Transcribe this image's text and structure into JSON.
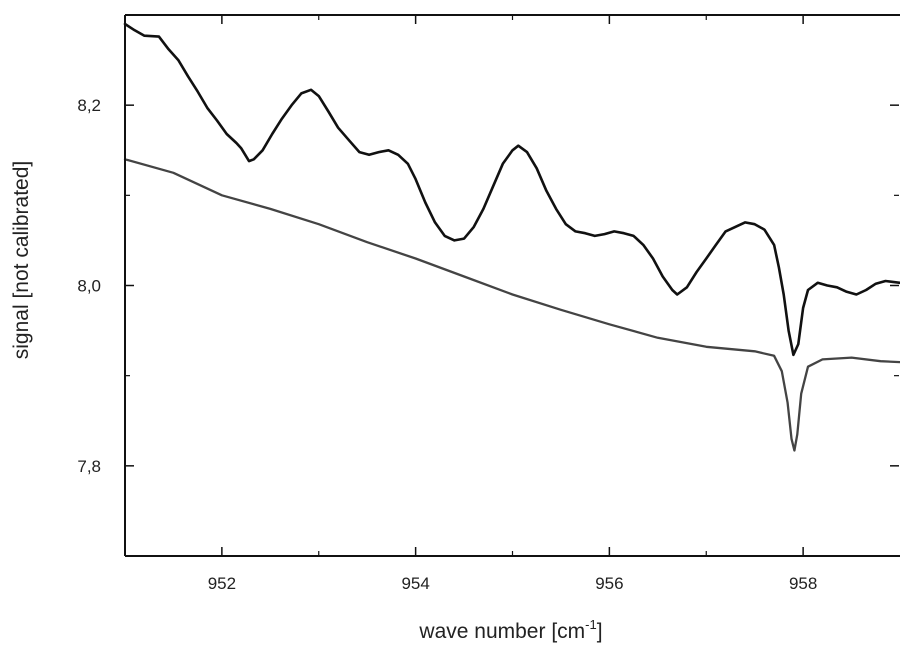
{
  "chart_data": {
    "type": "line",
    "title": "",
    "xlabel": {
      "prefix": "wave number [cm",
      "superscript": "-1",
      "suffix": "]"
    },
    "ylabel": "signal [not calibrated]",
    "xlim": [
      951.0,
      959.0
    ],
    "ylim": [
      7.7,
      8.3
    ],
    "xticks": [
      {
        "value": 952,
        "label": "952"
      },
      {
        "value": 954,
        "label": "954"
      },
      {
        "value": 956,
        "label": "956"
      },
      {
        "value": 958,
        "label": "958"
      }
    ],
    "yticks": [
      {
        "value": 7.8,
        "label": "7,8"
      },
      {
        "value": 8.0,
        "label": "8,0"
      },
      {
        "value": 8.2,
        "label": "8,2"
      }
    ],
    "x_minor_ticks": [
      951,
      953,
      955,
      957,
      959
    ],
    "y_minor_ticks": [
      7.7,
      7.9,
      8.1,
      8.3
    ],
    "grid": false,
    "legend": "none",
    "series": [
      {
        "color": "#111111",
        "points": [
          [
            951.0,
            8.29
          ],
          [
            951.1,
            8.283
          ],
          [
            951.2,
            8.277
          ],
          [
            951.35,
            8.276
          ],
          [
            951.45,
            8.262
          ],
          [
            951.55,
            8.25
          ],
          [
            951.65,
            8.232
          ],
          [
            951.75,
            8.215
          ],
          [
            951.85,
            8.197
          ],
          [
            951.95,
            8.183
          ],
          [
            952.05,
            8.168
          ],
          [
            952.15,
            8.158
          ],
          [
            952.2,
            8.152
          ],
          [
            952.28,
            8.138
          ],
          [
            952.33,
            8.14
          ],
          [
            952.42,
            8.15
          ],
          [
            952.52,
            8.168
          ],
          [
            952.62,
            8.185
          ],
          [
            952.72,
            8.2
          ],
          [
            952.82,
            8.213
          ],
          [
            952.92,
            8.217
          ],
          [
            953.0,
            8.21
          ],
          [
            953.1,
            8.193
          ],
          [
            953.2,
            8.175
          ],
          [
            953.32,
            8.16
          ],
          [
            953.42,
            8.148
          ],
          [
            953.52,
            8.145
          ],
          [
            953.62,
            8.148
          ],
          [
            953.72,
            8.15
          ],
          [
            953.82,
            8.145
          ],
          [
            953.92,
            8.135
          ],
          [
            954.0,
            8.118
          ],
          [
            954.1,
            8.092
          ],
          [
            954.2,
            8.07
          ],
          [
            954.3,
            8.055
          ],
          [
            954.4,
            8.05
          ],
          [
            954.5,
            8.052
          ],
          [
            954.6,
            8.065
          ],
          [
            954.7,
            8.085
          ],
          [
            954.8,
            8.11
          ],
          [
            954.9,
            8.135
          ],
          [
            955.0,
            8.15
          ],
          [
            955.06,
            8.155
          ],
          [
            955.15,
            8.148
          ],
          [
            955.25,
            8.13
          ],
          [
            955.35,
            8.105
          ],
          [
            955.45,
            8.085
          ],
          [
            955.55,
            8.068
          ],
          [
            955.65,
            8.06
          ],
          [
            955.75,
            8.058
          ],
          [
            955.85,
            8.055
          ],
          [
            955.95,
            8.057
          ],
          [
            956.05,
            8.06
          ],
          [
            956.15,
            8.058
          ],
          [
            956.25,
            8.055
          ],
          [
            956.35,
            8.045
          ],
          [
            956.45,
            8.03
          ],
          [
            956.55,
            8.01
          ],
          [
            956.65,
            7.995
          ],
          [
            956.7,
            7.99
          ],
          [
            956.8,
            7.998
          ],
          [
            956.9,
            8.015
          ],
          [
            957.0,
            8.03
          ],
          [
            957.1,
            8.045
          ],
          [
            957.2,
            8.06
          ],
          [
            957.3,
            8.065
          ],
          [
            957.4,
            8.07
          ],
          [
            957.5,
            8.068
          ],
          [
            957.6,
            8.062
          ],
          [
            957.7,
            8.045
          ],
          [
            957.75,
            8.02
          ],
          [
            957.8,
            7.99
          ],
          [
            957.85,
            7.95
          ],
          [
            957.9,
            7.923
          ],
          [
            957.95,
            7.935
          ],
          [
            958.0,
            7.975
          ],
          [
            958.05,
            7.995
          ],
          [
            958.15,
            8.003
          ],
          [
            958.25,
            8.0
          ],
          [
            958.35,
            7.998
          ],
          [
            958.45,
            7.993
          ],
          [
            958.55,
            7.99
          ],
          [
            958.65,
            7.995
          ],
          [
            958.75,
            8.002
          ],
          [
            958.85,
            8.005
          ],
          [
            959.0,
            8.003
          ]
        ]
      },
      {
        "color": "#444444",
        "points": [
          [
            951.0,
            8.14
          ],
          [
            951.5,
            8.125
          ],
          [
            952.0,
            8.1
          ],
          [
            952.5,
            8.085
          ],
          [
            953.0,
            8.068
          ],
          [
            953.5,
            8.048
          ],
          [
            954.0,
            8.03
          ],
          [
            954.5,
            8.01
          ],
          [
            955.0,
            7.99
          ],
          [
            955.5,
            7.973
          ],
          [
            956.0,
            7.957
          ],
          [
            956.5,
            7.942
          ],
          [
            957.0,
            7.932
          ],
          [
            957.5,
            7.927
          ],
          [
            957.7,
            7.922
          ],
          [
            957.78,
            7.905
          ],
          [
            957.84,
            7.87
          ],
          [
            957.88,
            7.83
          ],
          [
            957.91,
            7.817
          ],
          [
            957.94,
            7.835
          ],
          [
            957.98,
            7.88
          ],
          [
            958.05,
            7.91
          ],
          [
            958.2,
            7.918
          ],
          [
            958.5,
            7.92
          ],
          [
            958.8,
            7.916
          ],
          [
            959.0,
            7.915
          ]
        ]
      }
    ]
  }
}
